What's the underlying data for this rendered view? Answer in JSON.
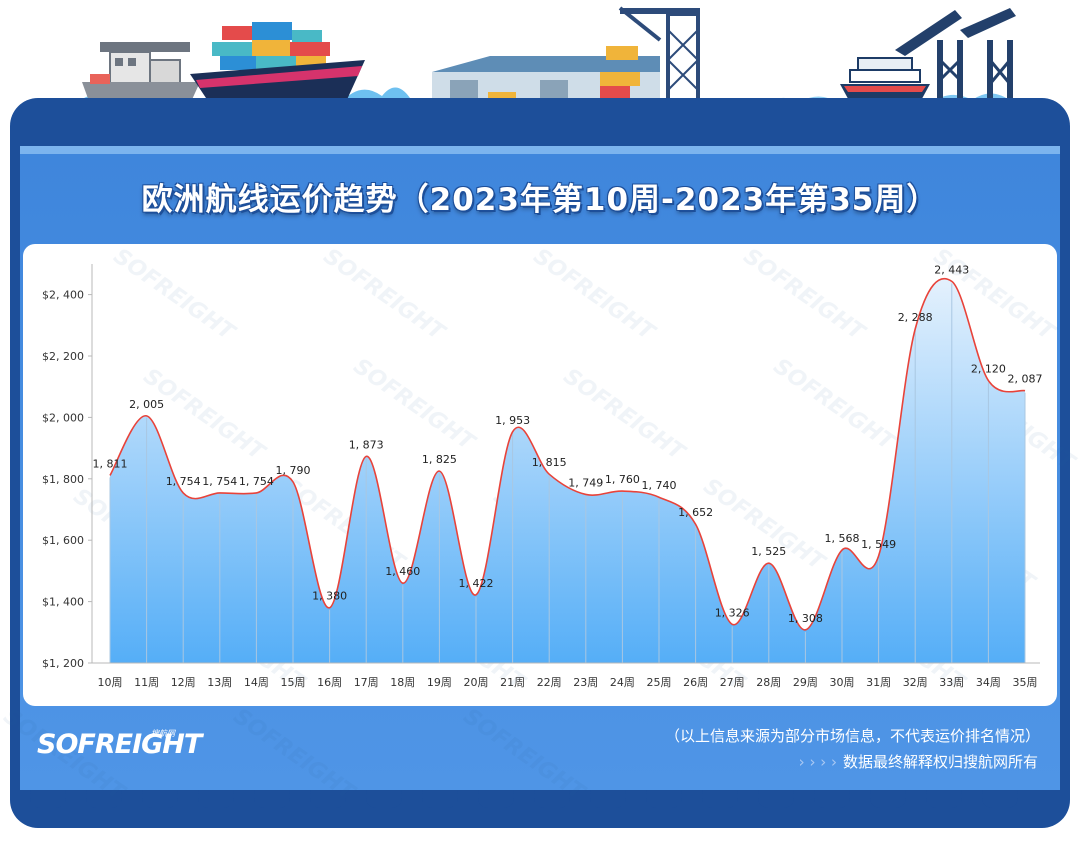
{
  "title": "欧洲航线运价趋势（2023年第10周-2023年第35周）",
  "brand": "SOFREIGHT",
  "brand_sub": "搜航网",
  "watermark": "SOFREIGHT",
  "footer": {
    "note": "（以上信息来源为部分市场信息，不代表运价排名情况）",
    "arrows": "› › › ›",
    "copyright": "数据最终解释权归搜航网所有"
  },
  "colors": {
    "frame": "#1d4f9a",
    "panel": "#4a8fe0",
    "line": "#e8433a",
    "area_top": "#d6e9fb",
    "area_bottom": "#58b2f8"
  },
  "chart_data": {
    "type": "area",
    "title": "欧洲航线运价趋势（2023年第10周-2023年第35周）",
    "categories": [
      "10周",
      "11周",
      "12周",
      "13周",
      "14周",
      "15周",
      "16周",
      "17周",
      "18周",
      "19周",
      "20周",
      "21周",
      "22周",
      "23周",
      "24周",
      "25周",
      "26周",
      "27周",
      "28周",
      "29周",
      "30周",
      "31周",
      "32周",
      "33周",
      "34周",
      "35周"
    ],
    "values": [
      1811,
      2005,
      1754,
      1754,
      1754,
      1790,
      1380,
      1873,
      1460,
      1825,
      1422,
      1953,
      1815,
      1749,
      1760,
      1740,
      1652,
      1326,
      1525,
      1308,
      1568,
      1549,
      2288,
      2443,
      2120,
      2087
    ],
    "data_labels": [
      "1, 811",
      "2, 005",
      "1, 754",
      "1, 754",
      "1, 754",
      "1, 790",
      "1, 380",
      "1, 873",
      "1, 460",
      "1, 825",
      "1, 422",
      "1, 953",
      "1, 815",
      "1, 749",
      "1, 760",
      "1, 740",
      "1, 652",
      "1, 326",
      "1, 525",
      "1, 308",
      "1, 568",
      "1, 549",
      "2, 288",
      "2, 443",
      "2, 120",
      "2, 087"
    ],
    "yticks": [
      1200,
      1400,
      1600,
      1800,
      2000,
      2200,
      2400
    ],
    "ytick_labels": [
      "$1, 200",
      "$1, 400",
      "$1, 600",
      "$1, 800",
      "$2, 000",
      "$2, 200",
      "$2, 400"
    ],
    "ylim": [
      1200,
      2530
    ],
    "xlabel": "",
    "ylabel": "",
    "grid": false,
    "legend": "none"
  }
}
